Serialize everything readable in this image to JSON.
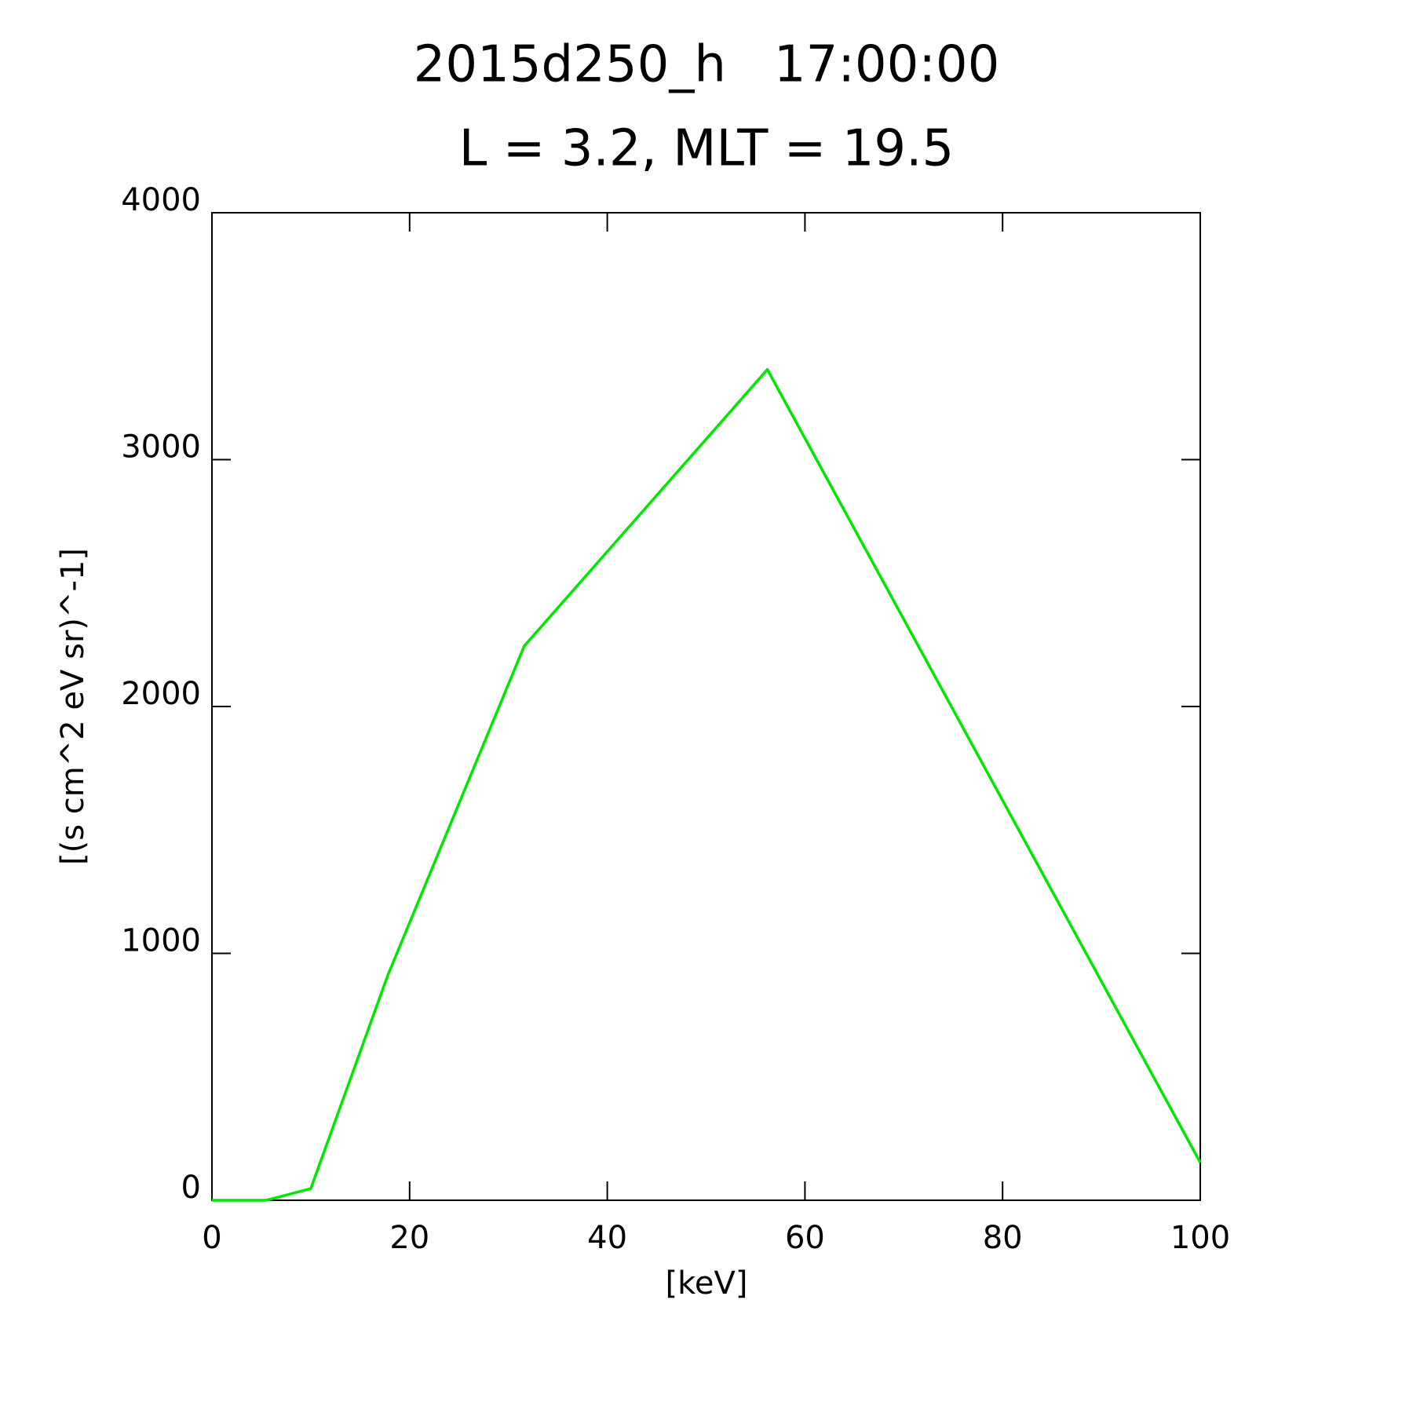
{
  "chart_data": {
    "type": "line",
    "title": "2015d250_h   17:00:00",
    "subtitle": "L = 3.2, MLT = 19.5",
    "x_label": "[keV]",
    "y_label": "[(s cm^2 eV sr)^-1]",
    "x": [
      0,
      5.5,
      10,
      17.8,
      31.6,
      56.2,
      100
    ],
    "series": [
      {
        "color": "#00e600",
        "values": [
          0,
          0,
          47,
          912,
          2245,
          3365,
          153
        ]
      }
    ],
    "xlim": [
      0,
      100
    ],
    "xticks": [
      0,
      20,
      40,
      60,
      80,
      100
    ],
    "ylim": [
      0,
      4000
    ],
    "yticks": [
      0,
      1000,
      2000,
      3000,
      4000
    ],
    "grid": false
  }
}
